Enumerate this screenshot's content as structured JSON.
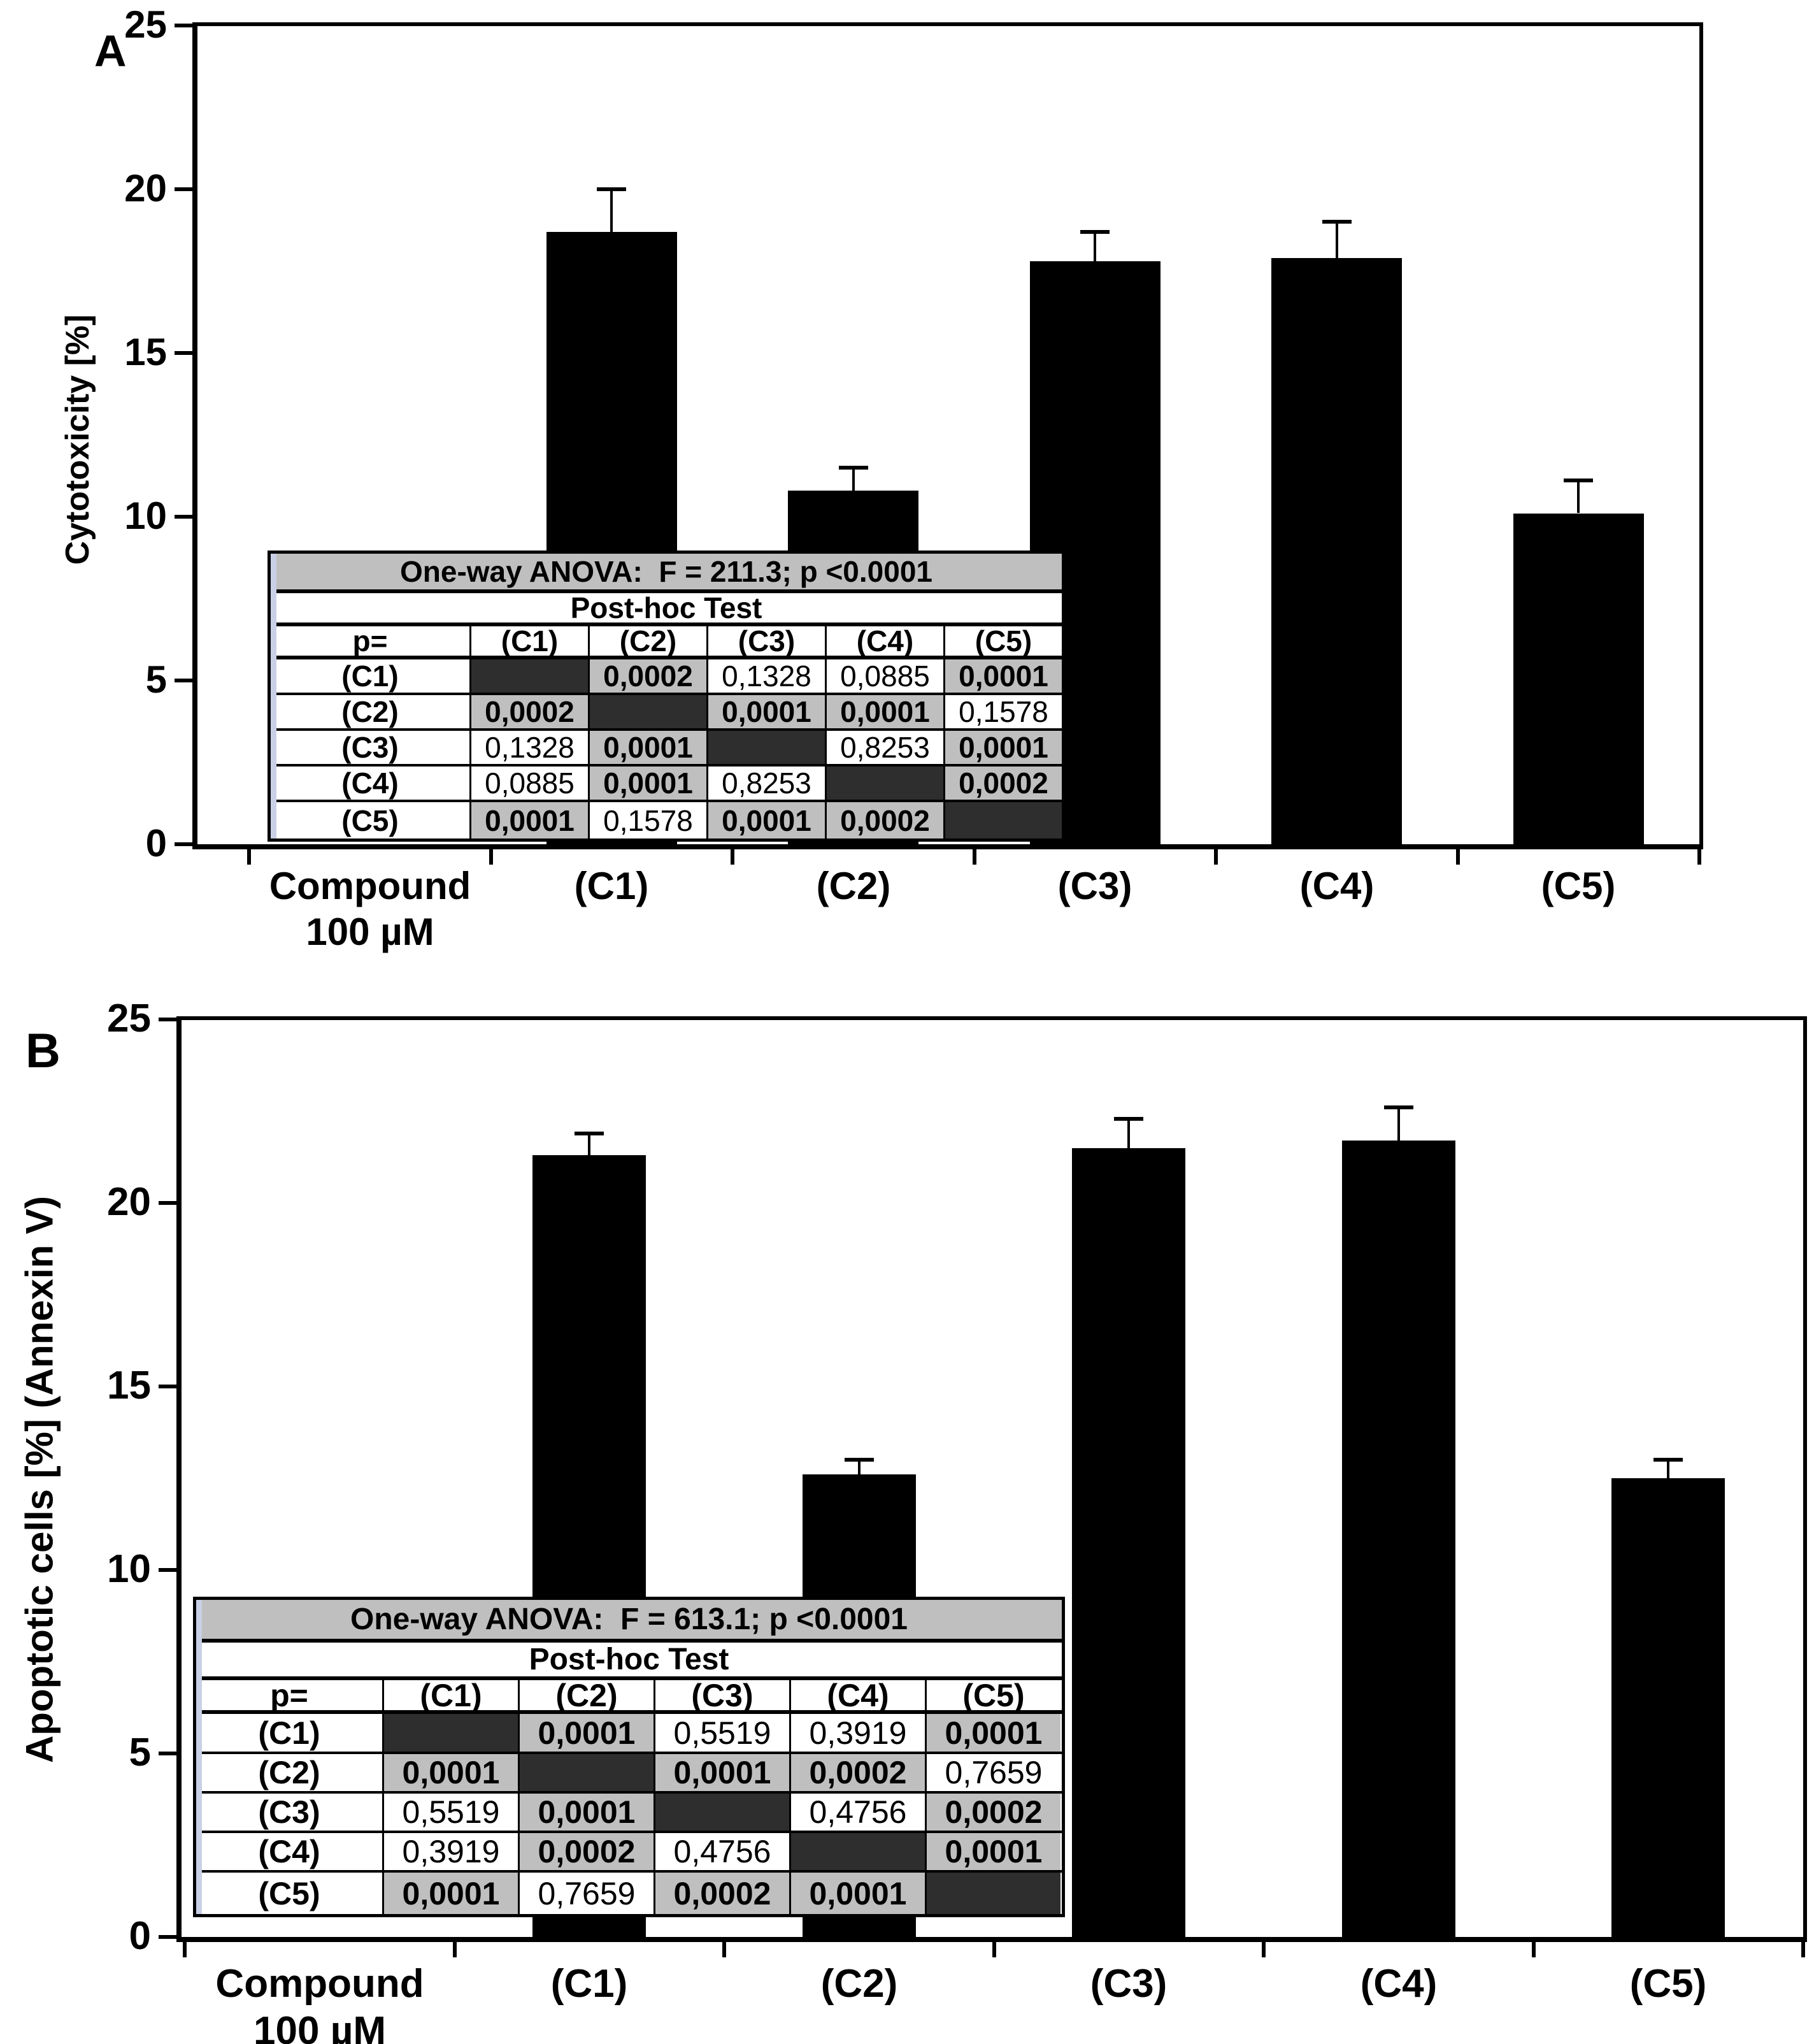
{
  "colors": {
    "bar": "#000000",
    "table_title_bg": "#bfbfbf",
    "significant_cell_bg": "#bfbfbf",
    "diagonal_cell_bg": "#2e2e2e",
    "left_strip": "#c9d0e6",
    "background": "#ffffff",
    "text": "#000000"
  },
  "chart_data": [
    {
      "type": "bar",
      "panel_label": "A",
      "ylabel": "Cytotoxicity [%]",
      "xlabel": "",
      "ylim": [
        0,
        25
      ],
      "yticks": [
        0,
        5,
        10,
        15,
        20,
        25
      ],
      "x_first_category": [
        "Compound",
        "100 µM"
      ],
      "categories": [
        "(C1)",
        "(C2)",
        "(C3)",
        "(C4)",
        "(C5)"
      ],
      "values": [
        18.7,
        10.8,
        17.8,
        17.9,
        10.1
      ],
      "errors": [
        1.3,
        0.7,
        0.9,
        1.1,
        1.0
      ],
      "grid": false,
      "anova": {
        "title": "One-way ANOVA:  F = 211.3; p <0.0001",
        "subtitle": "Post-hoc Test",
        "corner": "p=",
        "cols": [
          "(C1)",
          "(C2)",
          "(C3)",
          "(C4)",
          "(C5)"
        ],
        "rows": [
          "(C1)",
          "(C2)",
          "(C3)",
          "(C4)",
          "(C5)"
        ],
        "matrix": [
          [
            null,
            "0,0002",
            "0,1328",
            "0,0885",
            "0,0001"
          ],
          [
            "0,0002",
            null,
            "0,0001",
            "0,0001",
            "0,1578"
          ],
          [
            "0,1328",
            "0,0001",
            null,
            "0,8253",
            "0,0001"
          ],
          [
            "0,0885",
            "0,0001",
            "0,8253",
            null,
            "0,0002"
          ],
          [
            "0,0001",
            "0,1578",
            "0,0001",
            "0,0002",
            null
          ]
        ]
      }
    },
    {
      "type": "bar",
      "panel_label": "B",
      "ylabel": "Apoptotic cells [%] (Annexin V)",
      "xlabel": "",
      "ylim": [
        0,
        25
      ],
      "yticks": [
        0,
        5,
        10,
        15,
        20,
        25
      ],
      "x_first_category": [
        "Compound",
        "100 µM"
      ],
      "categories": [
        "(C1)",
        "(C2)",
        "(C3)",
        "(C4)",
        "(C5)"
      ],
      "values": [
        21.3,
        12.6,
        21.5,
        21.7,
        12.5
      ],
      "errors": [
        0.6,
        0.4,
        0.8,
        0.9,
        0.5
      ],
      "grid": false,
      "anova": {
        "title": "One-way ANOVA:  F = 613.1; p <0.0001",
        "subtitle": "Post-hoc Test",
        "corner": "p=",
        "cols": [
          "(C1)",
          "(C2)",
          "(C3)",
          "(C4)",
          "(C5)"
        ],
        "rows": [
          "(C1)",
          "(C2)",
          "(C3)",
          "(C4)",
          "(C5)"
        ],
        "matrix": [
          [
            null,
            "0,0001",
            "0,5519",
            "0,3919",
            "0,0001"
          ],
          [
            "0,0001",
            null,
            "0,0001",
            "0,0002",
            "0,7659"
          ],
          [
            "0,5519",
            "0,0001",
            null,
            "0,4756",
            "0,0002"
          ],
          [
            "0,3919",
            "0,0002",
            "0,4756",
            null,
            "0,0001"
          ],
          [
            "0,0001",
            "0,7659",
            "0,0002",
            "0,0001",
            null
          ]
        ]
      }
    }
  ]
}
